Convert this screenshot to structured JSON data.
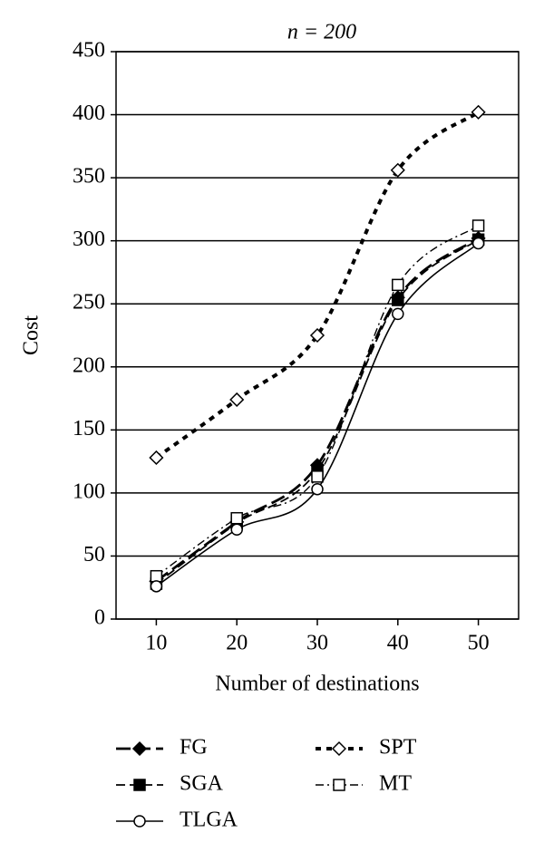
{
  "chart_data": {
    "type": "line",
    "title": "n = 200",
    "x_label": "Number of destinations",
    "y_label": "Cost",
    "x": [
      10,
      20,
      30,
      40,
      50
    ],
    "xlim": [
      5,
      55
    ],
    "xticks": [
      10,
      20,
      30,
      40,
      50
    ],
    "ylim": [
      0,
      450
    ],
    "yticks": [
      0,
      50,
      100,
      150,
      200,
      250,
      300,
      350,
      400,
      450
    ],
    "grid": true,
    "series": [
      {
        "name": "FG",
        "color": "#000000",
        "line_style": "longdash",
        "marker": "diamond",
        "marker_filled": true,
        "values": [
          30,
          77,
          122,
          255,
          302
        ]
      },
      {
        "name": "SPT",
        "color": "#000000",
        "line_style": "dotted",
        "marker": "diamond",
        "marker_filled": false,
        "values": [
          128,
          174,
          225,
          356,
          402
        ]
      },
      {
        "name": "SGA",
        "color": "#000000",
        "line_style": "dash",
        "marker": "square",
        "marker_filled": true,
        "values": [
          28,
          76,
          118,
          253,
          301
        ]
      },
      {
        "name": "MT",
        "color": "#000000",
        "line_style": "dashdot",
        "marker": "square",
        "marker_filled": false,
        "values": [
          34,
          80,
          113,
          265,
          312
        ]
      },
      {
        "name": "TLGA",
        "color": "#000000",
        "line_style": "solid",
        "marker": "circle",
        "marker_filled": false,
        "values": [
          26,
          71,
          103,
          242,
          298
        ]
      }
    ]
  }
}
